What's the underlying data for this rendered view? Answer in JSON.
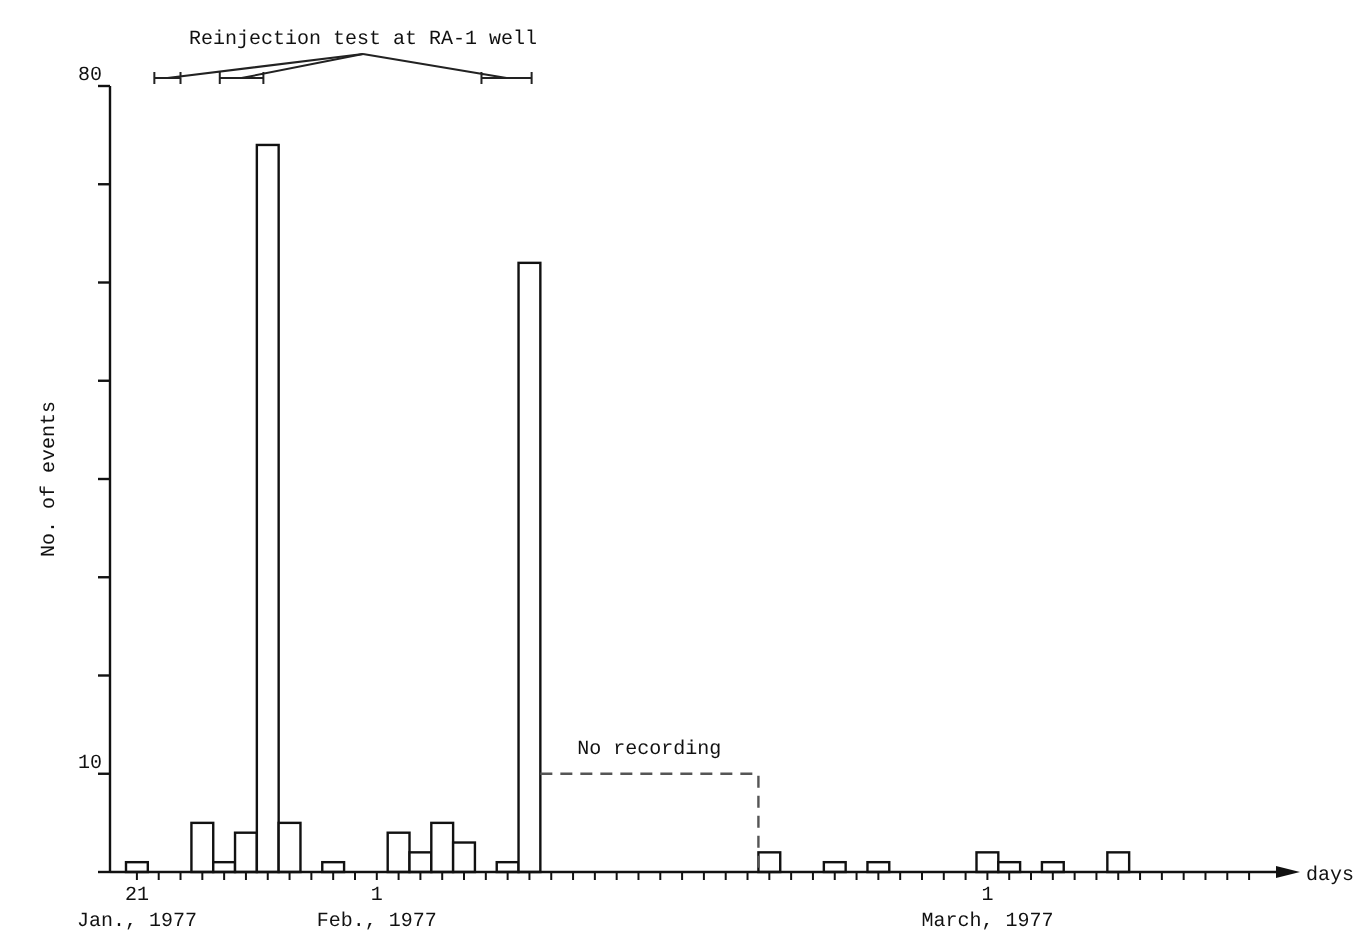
{
  "chart_data": {
    "type": "bar",
    "ylabel": "No. of events",
    "xlabel": "days",
    "categories": [
      "21\nJan., 1977",
      null,
      null,
      null,
      null,
      null,
      null,
      null,
      null,
      null,
      null,
      "1\nFeb., 1977",
      null,
      null,
      null,
      null,
      null,
      null,
      null,
      null,
      null,
      null,
      null,
      null,
      null,
      null,
      null,
      null,
      null,
      null,
      null,
      null,
      null,
      null,
      null,
      null,
      null,
      null,
      null,
      "1\nMarch, 1977",
      null,
      null,
      null,
      null,
      null,
      null,
      null,
      null,
      null,
      null,
      null,
      null
    ],
    "values": [
      1,
      0,
      0,
      5,
      1,
      4,
      74,
      5,
      0,
      1,
      0,
      0,
      4,
      2,
      5,
      3,
      0,
      1,
      62,
      null,
      null,
      null,
      null,
      null,
      null,
      null,
      null,
      null,
      null,
      2,
      0,
      0,
      1,
      0,
      1,
      0,
      0,
      0,
      0,
      2,
      1,
      0,
      1,
      0,
      0,
      2,
      0,
      0,
      0,
      0,
      0,
      0
    ],
    "color": "#ffffff",
    "ylim": [
      0,
      80
    ],
    "yticks": [
      {
        "value": 0,
        "label": null
      },
      10,
      {
        "value": 20,
        "label": null
      },
      {
        "value": 30,
        "label": null
      },
      {
        "value": 40,
        "label": null
      },
      {
        "value": 50,
        "label": null
      },
      {
        "value": 60,
        "label": null
      },
      {
        "value": 70,
        "label": null
      },
      80
    ],
    "annotations": [
      "Reinjection test at RA-1 well",
      "No recording"
    ],
    "grid": false
  }
}
